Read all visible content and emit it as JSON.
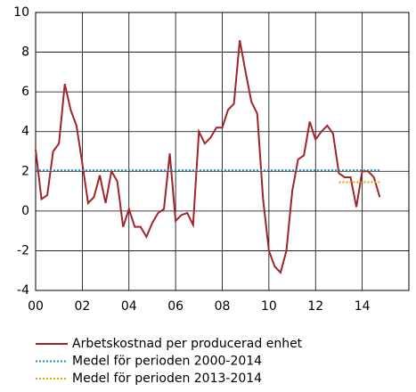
{
  "chart_data": {
    "type": "line",
    "xlim": [
      0,
      16
    ],
    "ylim": [
      -4,
      10
    ],
    "xticks": [
      {
        "value": 0,
        "label": "00"
      },
      {
        "value": 2,
        "label": "02"
      },
      {
        "value": 4,
        "label": "04"
      },
      {
        "value": 6,
        "label": "06"
      },
      {
        "value": 8,
        "label": "08"
      },
      {
        "value": 10,
        "label": "10"
      },
      {
        "value": 12,
        "label": "12"
      },
      {
        "value": 14,
        "label": "14"
      }
    ],
    "yticks": [
      -4,
      -2,
      0,
      2,
      4,
      6,
      8,
      10
    ],
    "grid": true,
    "series": [
      {
        "name": "Arbetskostnad per producerad enhet",
        "color": "#a0242a",
        "style": "solid",
        "x": [
          0,
          0.25,
          0.5,
          0.75,
          1,
          1.25,
          1.5,
          1.75,
          2,
          2.25,
          2.5,
          2.75,
          3,
          3.25,
          3.5,
          3.75,
          4,
          4.25,
          4.5,
          4.75,
          5,
          5.25,
          5.5,
          5.75,
          6,
          6.25,
          6.5,
          6.75,
          7,
          7.25,
          7.5,
          7.75,
          8,
          8.25,
          8.5,
          8.75,
          9,
          9.25,
          9.5,
          9.75,
          10,
          10.25,
          10.5,
          10.75,
          11,
          11.25,
          11.5,
          11.75,
          12,
          12.25,
          12.5,
          12.75,
          13,
          13.25,
          13.5,
          13.75,
          14,
          14.25,
          14.5,
          14.75
        ],
        "values": [
          3.1,
          0.6,
          0.8,
          3.0,
          3.4,
          6.4,
          5.1,
          4.3,
          2.4,
          0.4,
          0.7,
          1.8,
          0.4,
          2.0,
          1.5,
          -0.8,
          0.1,
          -0.8,
          -0.8,
          -1.3,
          -0.6,
          -0.1,
          0.1,
          2.9,
          -0.5,
          -0.2,
          -0.1,
          -0.7,
          4.0,
          3.4,
          3.7,
          4.2,
          4.2,
          5.1,
          5.4,
          8.6,
          7.0,
          5.5,
          4.9,
          0.6,
          -2.0,
          -2.8,
          -3.1,
          -2.0,
          1.0,
          2.6,
          2.8,
          4.5,
          3.6,
          4.0,
          4.3,
          3.9,
          1.9,
          1.7,
          1.7,
          0.2,
          2.0,
          2.0,
          1.7,
          0.7
        ]
      },
      {
        "name": "Medel för perioden 2000-2014",
        "color": "#2a8fc0",
        "style": "dotted",
        "x": [
          0,
          14.75
        ],
        "values": [
          2.05,
          2.05
        ]
      },
      {
        "name": "Medel för perioden 2013-2014",
        "color": "#e0a800",
        "style": "dotted",
        "x": [
          13,
          14.75
        ],
        "values": [
          1.45,
          1.45
        ]
      }
    ]
  }
}
